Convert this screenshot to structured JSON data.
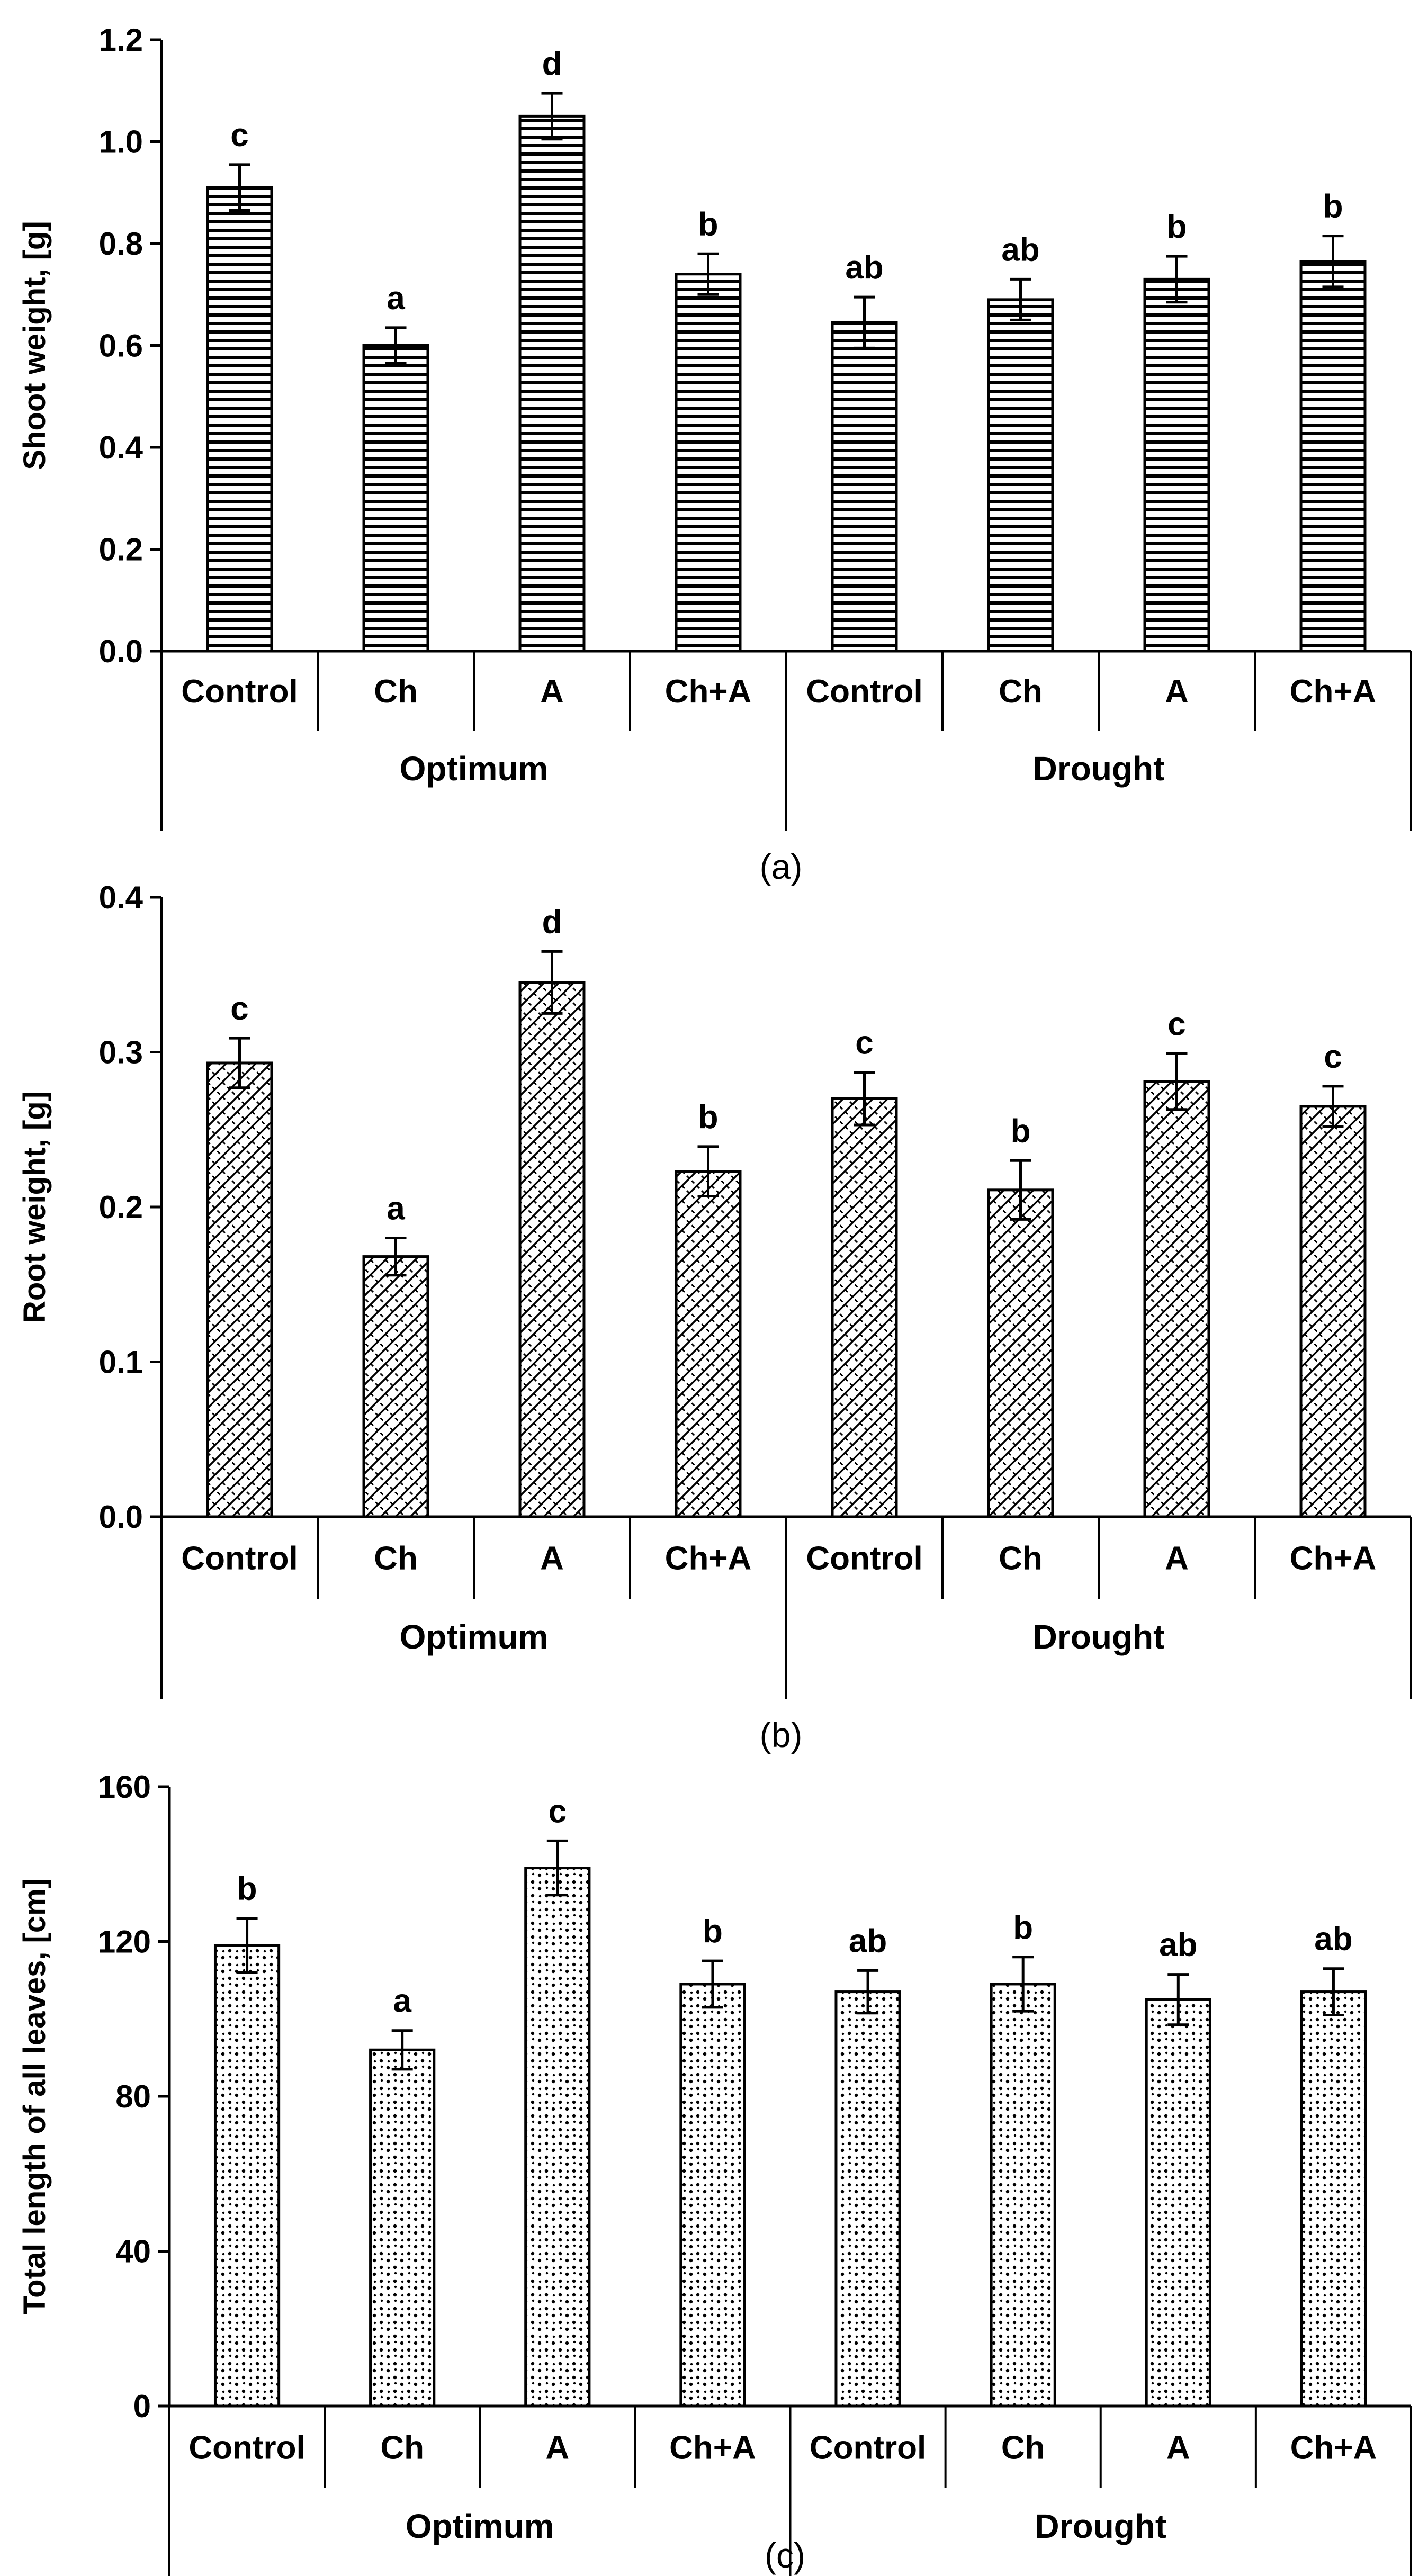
{
  "chart_data": [
    {
      "type": "bar",
      "panel_label": "(a)",
      "ylabel": "Shoot weight, [g]",
      "ylim": [
        0,
        1.2
      ],
      "yticks": [
        "0.0",
        "0.2",
        "0.4",
        "0.6",
        "0.8",
        "1.0",
        "1.2"
      ],
      "pattern": "horizontal-lines",
      "bar_color": "#000000",
      "categories": [
        "Control",
        "Ch",
        "A",
        "Ch+A",
        "Control",
        "Ch",
        "A",
        "Ch+A"
      ],
      "groups": [
        {
          "label": "Optimum",
          "count": 4
        },
        {
          "label": "Drought",
          "count": 4
        }
      ],
      "values": [
        0.91,
        0.6,
        1.05,
        0.74,
        0.645,
        0.69,
        0.73,
        0.765
      ],
      "errors": [
        0.045,
        0.035,
        0.045,
        0.04,
        0.05,
        0.04,
        0.045,
        0.05
      ],
      "significance": [
        "c",
        "a",
        "d",
        "b",
        "ab",
        "ab",
        "b",
        "b"
      ]
    },
    {
      "type": "bar",
      "panel_label": "(b)",
      "ylabel": "Root weight, [g]",
      "ylim": [
        0,
        0.4
      ],
      "yticks": [
        "0.0",
        "0.1",
        "0.2",
        "0.3",
        "0.4"
      ],
      "pattern": "diagonal-crosshatch",
      "bar_color": "#000000",
      "categories": [
        "Control",
        "Ch",
        "A",
        "Ch+A",
        "Control",
        "Ch",
        "A",
        "Ch+A"
      ],
      "groups": [
        {
          "label": "Optimum",
          "count": 4
        },
        {
          "label": "Drought",
          "count": 4
        }
      ],
      "values": [
        0.293,
        0.168,
        0.345,
        0.223,
        0.27,
        0.211,
        0.281,
        0.265
      ],
      "errors": [
        0.016,
        0.012,
        0.02,
        0.016,
        0.017,
        0.019,
        0.018,
        0.013
      ],
      "significance": [
        "c",
        "a",
        "d",
        "b",
        "c",
        "b",
        "c",
        "c"
      ]
    },
    {
      "type": "bar",
      "panel_label": "(c)",
      "ylabel": "Total length of all leaves, [cm]",
      "ylim": [
        0,
        160
      ],
      "yticks": [
        "0",
        "40",
        "80",
        "120",
        "160"
      ],
      "pattern": "dots",
      "bar_color": "#000000",
      "categories": [
        "Control",
        "Ch",
        "A",
        "Ch+A",
        "Control",
        "Ch",
        "A",
        "Ch+A"
      ],
      "groups": [
        {
          "label": "Optimum",
          "count": 4
        },
        {
          "label": "Drought",
          "count": 4
        }
      ],
      "values": [
        119,
        92,
        139,
        109,
        107,
        109,
        105,
        107
      ],
      "errors": [
        7,
        5,
        7,
        6,
        5.5,
        7,
        6.5,
        6
      ],
      "significance": [
        "b",
        "a",
        "c",
        "b",
        "ab",
        "b",
        "ab",
        "ab"
      ]
    }
  ]
}
